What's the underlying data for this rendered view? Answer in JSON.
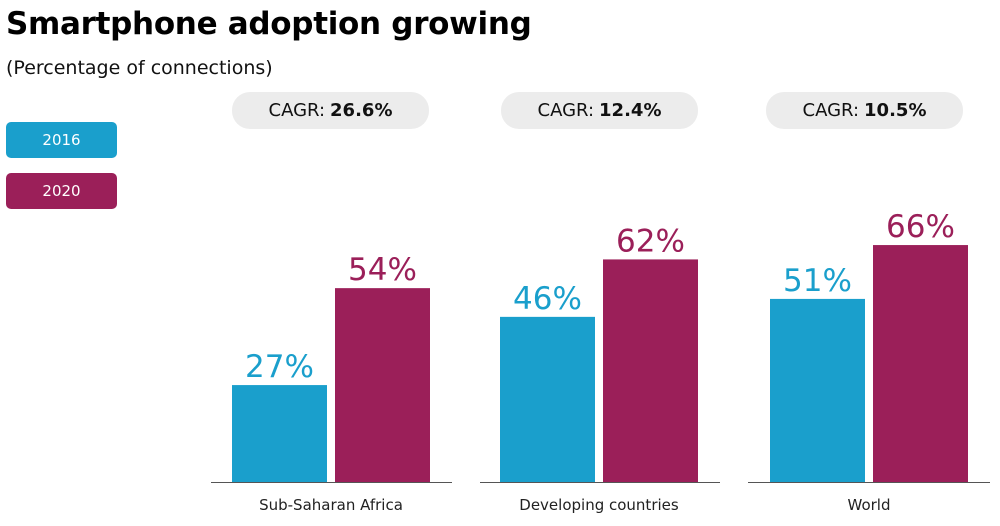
{
  "title": "Smartphone adoption growing",
  "subtitle": "(Percentage of connections)",
  "legend": [
    {
      "label": "2016",
      "color": "#1a9fcc"
    },
    {
      "label": "2020",
      "color": "#9b1f59"
    }
  ],
  "cagr": [
    {
      "prefix": "CAGR:",
      "value": "26.6%"
    },
    {
      "prefix": "CAGR:",
      "value": "12.4%"
    },
    {
      "prefix": "CAGR:",
      "value": "10.5%"
    }
  ],
  "chart_data": {
    "type": "bar",
    "title": "Smartphone adoption growing",
    "subtitle": "(Percentage of connections)",
    "categories": [
      "Sub-Saharan Africa",
      "Developing countries",
      "World"
    ],
    "series": [
      {
        "name": "2016",
        "values": [
          27,
          46,
          51
        ],
        "labels": [
          "27%",
          "46%",
          "51%"
        ],
        "color": "#1a9fcc"
      },
      {
        "name": "2020",
        "values": [
          54,
          62,
          66
        ],
        "labels": [
          "54%",
          "62%",
          "66%"
        ],
        "color": "#9b1f59"
      }
    ],
    "ylim": [
      0,
      100
    ],
    "grid": false,
    "legend_position": "left"
  }
}
